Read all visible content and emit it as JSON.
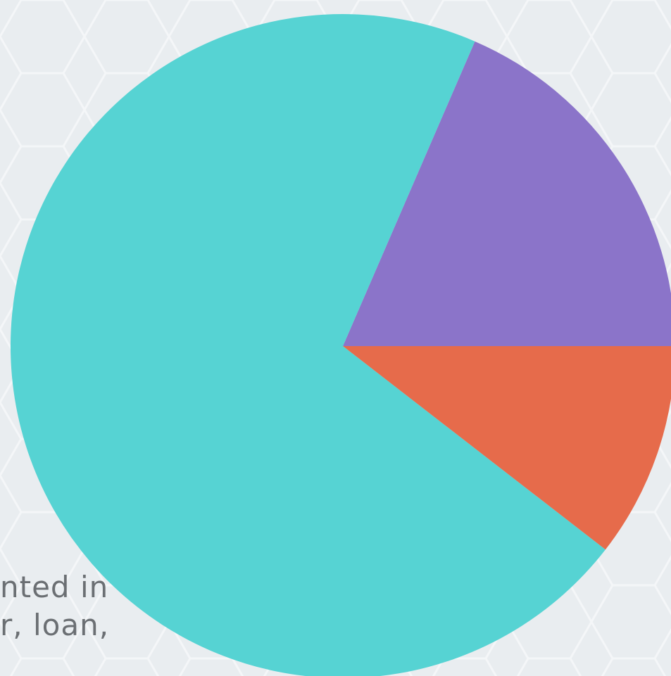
{
  "background_text": {
    "line1": "nted in",
    "line2": "r, loan,"
  },
  "chart_data": {
    "type": "pie",
    "start_angle_deg": 0,
    "direction": "counterclockwise",
    "slices": [
      {
        "value": 18.5,
        "color": "#8b74c9"
      },
      {
        "value": 71.0,
        "color": "#56d3d3"
      },
      {
        "value": 10.5,
        "color": "#e66b4b"
      }
    ]
  },
  "colors": {
    "background": "#e9edf0",
    "teal": "#56d3d3",
    "purple": "#8b74c9",
    "orange": "#e66b4b",
    "text": "#6b6f73"
  }
}
